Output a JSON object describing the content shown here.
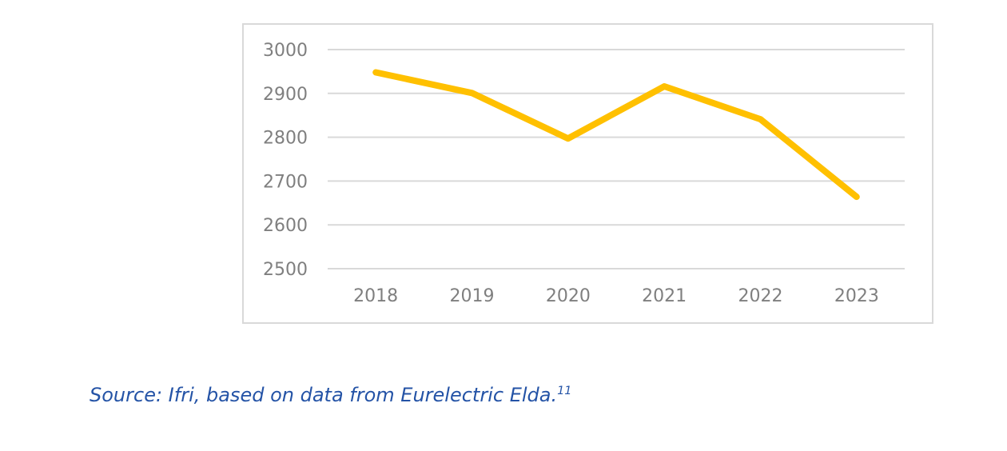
{
  "caption": {
    "text": "Source: Ifri, based on data from Eurelectric Elda.",
    "footnote_ref": "11",
    "color": "#2453A6"
  },
  "chart_data": {
    "type": "line",
    "categories": [
      "2018",
      "2019",
      "2020",
      "2021",
      "2022",
      "2023"
    ],
    "series": [
      {
        "values": [
          2948,
          2901,
          2797,
          2916,
          2841,
          2664
        ],
        "color": "#FFC000"
      }
    ],
    "ylim": [
      2500,
      3000
    ],
    "yticks": [
      2500,
      2600,
      2700,
      2800,
      2900,
      3000
    ],
    "grid": true,
    "legend": "none",
    "frame_color": "#D9D9D9",
    "grid_color": "#D9D9D9",
    "tick_label_color": "#7F7F7F",
    "line_width": 8
  }
}
